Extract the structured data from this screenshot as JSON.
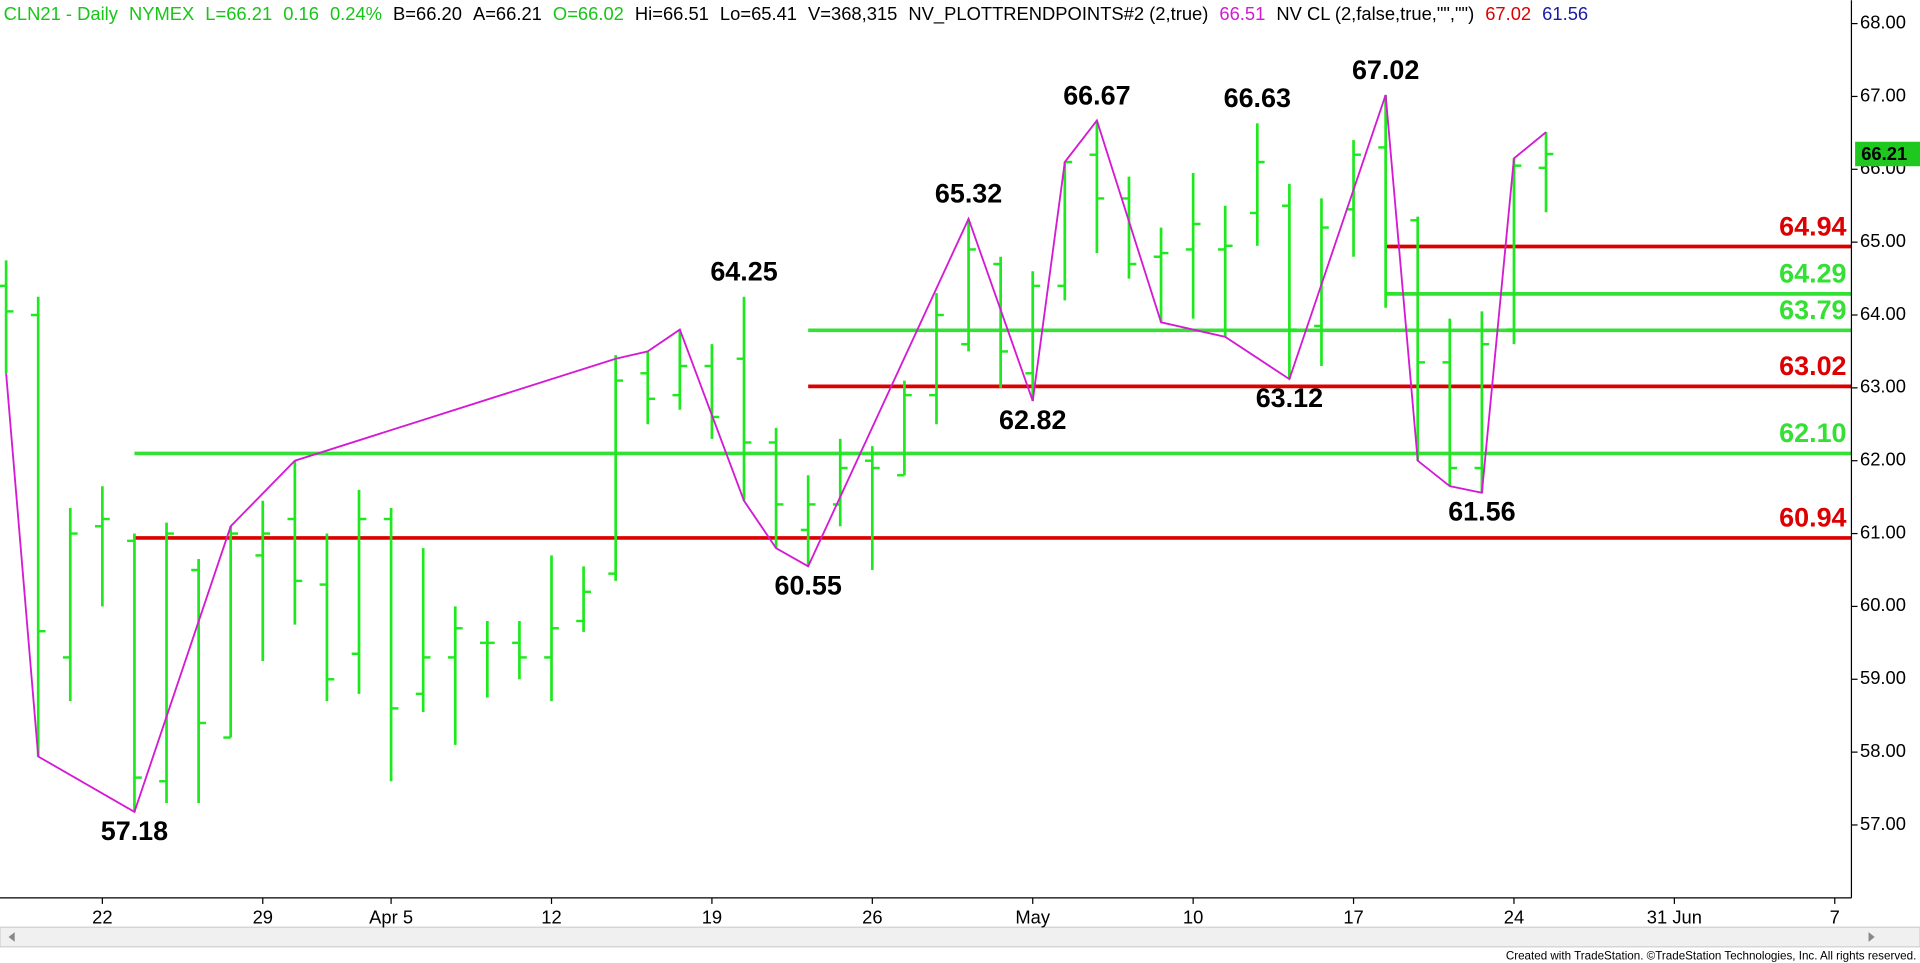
{
  "chart_data": {
    "type": "ohlc",
    "header": [
      {
        "text": "CLN21 - Daily",
        "color": "#16c616"
      },
      {
        "text": "NYMEX",
        "color": "#16c616"
      },
      {
        "text": "L=66.21",
        "color": "#16c616"
      },
      {
        "text": "0.16",
        "color": "#16c616"
      },
      {
        "text": "0.24%",
        "color": "#16c616"
      },
      {
        "text": "B=66.20",
        "color": "#000000"
      },
      {
        "text": "A=66.21",
        "color": "#000000"
      },
      {
        "text": "O=66.02",
        "color": "#16c616"
      },
      {
        "text": "Hi=66.51",
        "color": "#000000"
      },
      {
        "text": "Lo=65.41",
        "color": "#000000"
      },
      {
        "text": "V=368,315",
        "color": "#000000"
      },
      {
        "text": "NV_PLOTTRENDPOINTS#2 (2,true)",
        "color": "#000000"
      },
      {
        "text": "66.51",
        "color": "#d41ad4"
      },
      {
        "text": "NV CL (2,false,true,\"\",\"\")",
        "color": "#000000"
      },
      {
        "text": "67.02",
        "color": "#dd0000"
      },
      {
        "text": "61.56",
        "color": "#1a1aa8"
      }
    ],
    "footer": "Created with TradeStation. ©TradeStation Technologies, Inc. All rights reserved.",
    "categories": [
      null,
      null,
      null,
      "22",
      null,
      null,
      null,
      null,
      "29",
      null,
      null,
      null,
      "Apr 5",
      null,
      null,
      null,
      null,
      "12",
      null,
      null,
      null,
      null,
      "19",
      null,
      null,
      null,
      null,
      "26",
      null,
      null,
      null,
      null,
      "May",
      null,
      null,
      null,
      null,
      "10",
      null,
      null,
      null,
      null,
      "17",
      null,
      null,
      null,
      null,
      "24",
      null,
      null,
      null,
      null,
      "31 Jun",
      null,
      null,
      null,
      null,
      "7"
    ],
    "bar_color": "#1ee81e",
    "open": [
      64.4,
      64.0,
      59.3,
      61.1,
      60.9,
      57.6,
      60.5,
      58.2,
      60.7,
      61.2,
      60.3,
      59.35,
      61.2,
      58.8,
      59.3,
      59.5,
      59.5,
      59.3,
      59.8,
      60.45,
      63.2,
      62.9,
      63.3,
      63.4,
      62.25,
      61.05,
      61.4,
      62.0,
      61.8,
      62.9,
      63.6,
      64.7,
      63.2,
      64.4,
      66.2,
      65.6,
      64.8,
      64.9,
      64.9,
      65.4,
      65.5,
      63.85,
      65.45,
      66.3,
      65.3,
      63.35,
      61.9,
      63.8,
      66.02,
      null,
      null,
      null,
      null,
      null,
      null,
      null,
      null,
      null
    ],
    "high": [
      64.75,
      64.25,
      61.35,
      61.65,
      61.0,
      61.15,
      60.65,
      61.1,
      61.45,
      62.0,
      61.0,
      61.6,
      61.35,
      60.8,
      60.0,
      59.8,
      59.8,
      60.7,
      60.55,
      63.45,
      63.5,
      63.8,
      63.6,
      64.25,
      62.45,
      61.8,
      62.3,
      62.2,
      63.1,
      64.3,
      65.32,
      64.8,
      64.6,
      66.1,
      66.67,
      65.9,
      65.2,
      65.95,
      65.5,
      66.63,
      65.8,
      65.6,
      66.4,
      67.02,
      65.35,
      63.95,
      64.05,
      66.15,
      66.51,
      null,
      null,
      null,
      null,
      null,
      null,
      null,
      null,
      null
    ],
    "low": [
      63.2,
      57.94,
      58.7,
      60.0,
      57.18,
      57.3,
      57.3,
      58.2,
      59.25,
      59.75,
      58.7,
      58.8,
      57.6,
      58.55,
      58.1,
      58.75,
      59.0,
      58.7,
      59.65,
      60.35,
      62.5,
      62.7,
      62.3,
      61.45,
      60.8,
      60.55,
      61.1,
      60.5,
      61.8,
      62.5,
      63.5,
      63.0,
      62.82,
      64.2,
      64.85,
      64.5,
      63.9,
      63.95,
      63.7,
      64.95,
      63.12,
      63.3,
      64.8,
      64.1,
      62.0,
      61.65,
      61.56,
      63.6,
      65.41,
      null,
      null,
      null,
      null,
      null,
      null,
      null,
      null,
      null
    ],
    "close": [
      64.05,
      59.66,
      61.0,
      61.2,
      57.65,
      61.0,
      58.4,
      61.0,
      61.0,
      60.35,
      59.0,
      61.2,
      58.6,
      59.3,
      59.7,
      59.5,
      59.3,
      59.7,
      60.2,
      63.1,
      62.85,
      63.3,
      62.6,
      62.25,
      61.4,
      61.4,
      61.9,
      61.9,
      62.9,
      64.0,
      64.9,
      63.5,
      64.4,
      66.1,
      65.6,
      64.7,
      64.85,
      65.25,
      64.95,
      66.1,
      63.8,
      65.2,
      66.2,
      64.3,
      63.35,
      61.9,
      63.6,
      66.05,
      66.21,
      null,
      null,
      null,
      null,
      null,
      null,
      null,
      null,
      null
    ],
    "trend": {
      "color": "#d41ad4",
      "x": [
        0,
        1,
        4,
        7,
        9,
        19,
        20,
        21,
        23,
        24,
        25,
        30,
        32,
        33,
        34,
        36,
        38,
        40,
        43,
        44,
        45,
        46,
        47,
        48
      ],
      "values": [
        63.2,
        57.94,
        57.18,
        61.1,
        62.0,
        63.4,
        63.5,
        63.8,
        61.45,
        60.8,
        60.55,
        65.32,
        62.82,
        66.1,
        66.67,
        63.9,
        63.7,
        63.12,
        67.02,
        62.0,
        61.65,
        61.56,
        66.15,
        66.51
      ]
    },
    "swing_labels": [
      {
        "x": 4,
        "value": 57.18,
        "position": "below"
      },
      {
        "x": 23,
        "value": 64.25,
        "position": "above"
      },
      {
        "x": 25,
        "value": 60.55,
        "position": "below"
      },
      {
        "x": 30,
        "value": 65.32,
        "position": "above"
      },
      {
        "x": 32,
        "value": 62.82,
        "position": "below"
      },
      {
        "x": 34,
        "value": 66.67,
        "position": "above"
      },
      {
        "x": 39,
        "value": 66.63,
        "position": "above"
      },
      {
        "x": 40,
        "value": 63.12,
        "position": "below"
      },
      {
        "x": 43,
        "value": 67.02,
        "position": "above"
      },
      {
        "x": 46,
        "value": 61.56,
        "position": "below"
      }
    ],
    "levels": [
      {
        "value": 64.94,
        "start": 43,
        "color": "#dd0000"
      },
      {
        "value": 64.29,
        "start": 43,
        "color": "#33e033"
      },
      {
        "value": 63.79,
        "start": 25,
        "color": "#33e033"
      },
      {
        "value": 63.02,
        "start": 25,
        "color": "#dd0000"
      },
      {
        "value": 62.1,
        "label": "62.10",
        "start": 4,
        "color": "#33e033"
      },
      {
        "value": 60.94,
        "start": 4,
        "color": "#dd0000"
      }
    ],
    "last_price": {
      "value": 66.21,
      "color": "#1ec81e"
    },
    "ylim": [
      56,
      68.32
    ],
    "yticks": [
      {
        "value": 57,
        "label": "57.00"
      },
      {
        "value": 58,
        "label": "58.00"
      },
      {
        "value": 59,
        "label": "59.00"
      },
      {
        "value": 60,
        "label": "60.00"
      },
      {
        "value": 61,
        "label": "61.00"
      },
      {
        "value": 62,
        "label": "62.00"
      },
      {
        "value": 63,
        "label": "63.00"
      },
      {
        "value": 64,
        "label": "64.00"
      },
      {
        "value": 65,
        "label": "65.00"
      },
      {
        "value": 66,
        "label": "66.00"
      },
      {
        "value": 67,
        "label": "67.00"
      },
      {
        "value": 68,
        "label": "68.00"
      }
    ]
  }
}
